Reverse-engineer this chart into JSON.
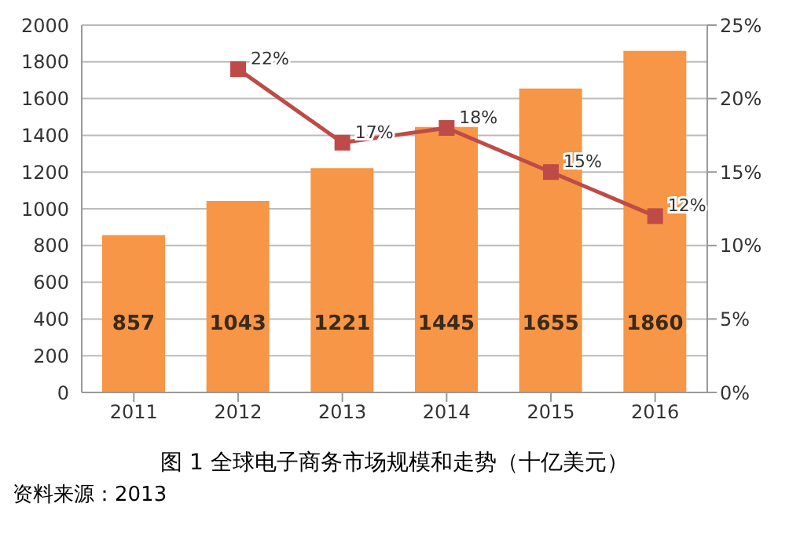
{
  "chart_data": {
    "type": "bar",
    "title": "图 1 全球电子商务市场规模和走势（十亿美元）",
    "annotations": [
      "资料来源：2013"
    ],
    "categories": [
      "2011",
      "2012",
      "2013",
      "2014",
      "2015",
      "2016"
    ],
    "series": [
      {
        "color": "#f79646",
        "values": [
          857,
          1043,
          1221,
          1445,
          1655,
          1860
        ],
        "value_labels": [
          "857",
          "1043",
          "1221",
          "1445",
          "1655",
          "1860"
        ]
      },
      {
        "type": "line",
        "axis": "y2",
        "color": "#be4b48",
        "values": [
          null,
          22,
          17,
          18,
          15,
          12
        ],
        "value_labels": [
          null,
          "22%",
          "17%",
          "18%",
          "15%",
          "12%"
        ]
      }
    ],
    "ylim": [
      0,
      2000
    ],
    "yticks": [
      0,
      200,
      400,
      600,
      800,
      1000,
      1200,
      1400,
      1600,
      1800,
      2000
    ],
    "y2lim": [
      0,
      25
    ],
    "y2ticks": [
      {
        "value": 0,
        "label": "0%"
      },
      {
        "value": 5,
        "label": "5%"
      },
      {
        "value": 10,
        "label": "10%"
      },
      {
        "value": 15,
        "label": "15%"
      },
      {
        "value": 20,
        "label": "20%"
      },
      {
        "value": 25,
        "label": "25%"
      }
    ],
    "grid": "y",
    "legend": false,
    "marker": "square",
    "line_style": "solid"
  }
}
